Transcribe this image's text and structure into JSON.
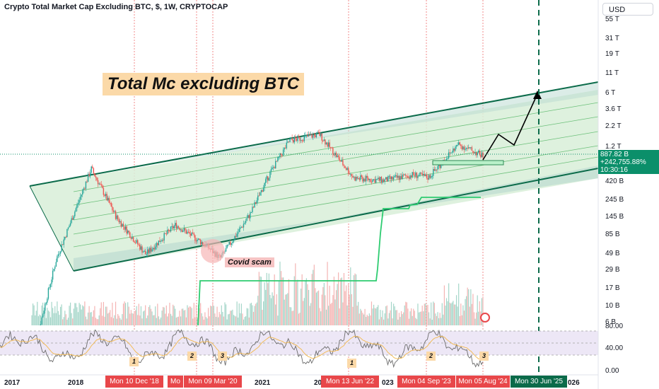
{
  "header": {
    "title": "Crypto Total Market Cap Excluding BTC, $, 1W, CRYPTOCAP"
  },
  "currency_button": {
    "label": "USD"
  },
  "callout": {
    "text": "Total Mc excluding BTC"
  },
  "covid_label": {
    "text": "Covid scam"
  },
  "price_label": {
    "value": "887.82 B",
    "change": "+242,755.88%",
    "countdown": "10:30:16"
  },
  "y_axis_labels": [
    "55 T",
    "31 T",
    "19 T",
    "11 T",
    "6 T",
    "3.6 T",
    "2.2 T",
    "1.2 T",
    "420 B",
    "245 B",
    "145 B",
    "85 B",
    "49 B",
    "29 B",
    "17 B",
    "10 B",
    "6 B"
  ],
  "rsi_axis_labels": [
    "80.00",
    "40.00",
    "0.00"
  ],
  "x_axis_labels": [
    "2017",
    "2018",
    "2021",
    "20",
    "023",
    "026"
  ],
  "date_labels": [
    "Mon 10 Dec '18",
    "Mo",
    "Mon 09 Mar '20",
    "Mon 13 Jun '22",
    "Mon 04 Sep '23",
    "Mon 05 Aug '24"
  ],
  "projection_date": "Mon 30 Jun '25",
  "wave_labels": [
    "1",
    "2",
    "3",
    "1",
    "2",
    "3"
  ],
  "colors": {
    "up": "#26a69a",
    "down": "#ef5350",
    "channel": "#0b6b4a",
    "channel_fill": "#c8e6c9",
    "rsi_line": "#7e57c2",
    "rsi_band": "#ede7f6",
    "indicator_line": "#2ecc71",
    "projection": "#0b6b4a"
  },
  "chart_data": {
    "type": "line",
    "title": "Crypto Total Market Cap Excluding BTC, $, 1W, CRYPTOCAP",
    "ylabel": "USD (log scale)",
    "y_scale": "log",
    "ylim": [
      "6 B",
      "55 T"
    ],
    "series": [
      {
        "name": "",
        "x": [
          "2017-01",
          "2017-06",
          "2018-01",
          "2018-06",
          "2018-12",
          "2019-06",
          "2019-12",
          "2020-03",
          "2020-09",
          "2021-01",
          "2021-05",
          "2021-11",
          "2022-06",
          "2022-12",
          "2023-06",
          "2023-09",
          "2024-03",
          "2024-08"
        ],
        "values": [
          2,
          40,
          600,
          140,
          45,
          110,
          60,
          40,
          150,
          520,
          1400,
          1700,
          450,
          420,
          500,
          460,
          1250,
          887.82
        ],
        "unit": "B USD"
      }
    ],
    "projection": {
      "date": "Mon 30 Jun '25",
      "target": "6 T"
    },
    "rsi": {
      "ylim": [
        0,
        100
      ],
      "band": [
        30,
        70
      ]
    }
  }
}
